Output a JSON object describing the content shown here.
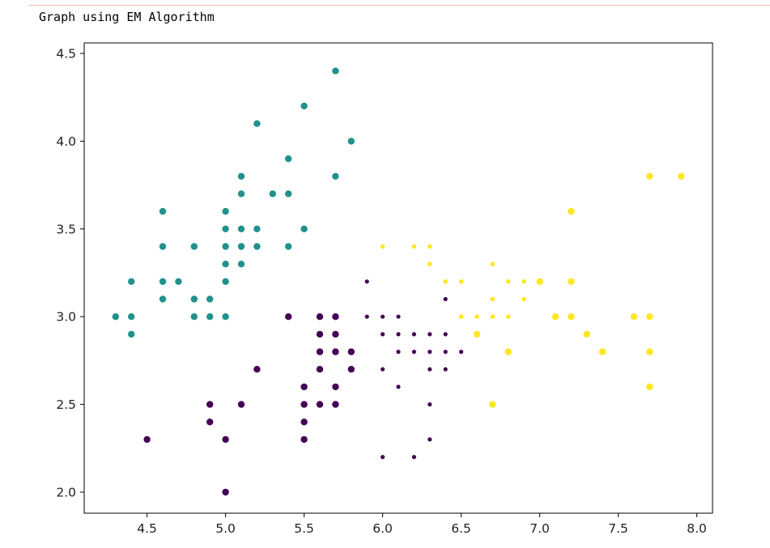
{
  "output": {
    "caption": "Graph using EM Algorithm"
  },
  "chart_data": {
    "type": "scatter",
    "title": "",
    "xlabel": "",
    "ylabel": "",
    "xlim": [
      4.1,
      8.1
    ],
    "ylim": [
      1.88,
      4.56
    ],
    "xticks": [
      4.5,
      5.0,
      5.5,
      6.0,
      6.5,
      7.0,
      7.5,
      8.0
    ],
    "yticks": [
      2.0,
      2.5,
      3.0,
      3.5,
      4.0,
      4.5
    ],
    "xtick_labels": [
      "4.5",
      "5.0",
      "5.5",
      "6.0",
      "6.5",
      "7.0",
      "7.5",
      "8.0"
    ],
    "ytick_labels": [
      "2.0",
      "2.5",
      "3.0",
      "3.5",
      "4.0",
      "4.5"
    ],
    "grid": false,
    "legend": "none",
    "series": [
      {
        "color": "#21918c",
        "points": [
          [
            4.3,
            3.0
          ],
          [
            4.4,
            3.0
          ],
          [
            4.4,
            2.9
          ],
          [
            4.4,
            3.2
          ],
          [
            4.6,
            3.6
          ],
          [
            4.6,
            3.4
          ],
          [
            4.6,
            3.2
          ],
          [
            4.6,
            3.1
          ],
          [
            4.7,
            3.2
          ],
          [
            4.8,
            3.4
          ],
          [
            4.8,
            3.1
          ],
          [
            4.8,
            3.0
          ],
          [
            4.9,
            3.1
          ],
          [
            4.9,
            3.0
          ],
          [
            5.0,
            3.6
          ],
          [
            5.0,
            3.5
          ],
          [
            5.0,
            3.4
          ],
          [
            5.0,
            3.3
          ],
          [
            5.0,
            3.2
          ],
          [
            5.0,
            3.0
          ],
          [
            5.1,
            3.8
          ],
          [
            5.1,
            3.7
          ],
          [
            5.1,
            3.5
          ],
          [
            5.1,
            3.4
          ],
          [
            5.1,
            3.3
          ],
          [
            5.2,
            4.1
          ],
          [
            5.2,
            3.5
          ],
          [
            5.2,
            3.4
          ],
          [
            5.3,
            3.7
          ],
          [
            5.4,
            3.9
          ],
          [
            5.4,
            3.7
          ],
          [
            5.4,
            3.4
          ],
          [
            5.5,
            4.2
          ],
          [
            5.5,
            3.5
          ],
          [
            5.7,
            4.4
          ],
          [
            5.7,
            3.8
          ],
          [
            5.8,
            4.0
          ]
        ]
      },
      {
        "color": "#440154",
        "points": [
          [
            4.5,
            2.3
          ],
          [
            4.9,
            2.5
          ],
          [
            4.9,
            2.4
          ],
          [
            5.0,
            2.3
          ],
          [
            5.0,
            2.0
          ],
          [
            5.1,
            2.5
          ],
          [
            5.2,
            2.7
          ],
          [
            5.4,
            3.0
          ],
          [
            5.5,
            2.6
          ],
          [
            5.5,
            2.5
          ],
          [
            5.5,
            2.4
          ],
          [
            5.5,
            2.3
          ],
          [
            5.6,
            3.0
          ],
          [
            5.6,
            2.9
          ],
          [
            5.6,
            2.8
          ],
          [
            5.6,
            2.7
          ],
          [
            5.6,
            2.5
          ],
          [
            5.7,
            3.0
          ],
          [
            5.7,
            2.9
          ],
          [
            5.7,
            2.8
          ],
          [
            5.7,
            2.6
          ],
          [
            5.7,
            2.5
          ],
          [
            5.8,
            2.8
          ],
          [
            5.8,
            2.7
          ],
          [
            5.9,
            3.2
          ],
          [
            5.9,
            3.0
          ],
          [
            6.0,
            3.0
          ],
          [
            6.0,
            2.9
          ],
          [
            6.0,
            2.7
          ],
          [
            6.0,
            2.2
          ],
          [
            6.1,
            3.0
          ],
          [
            6.1,
            2.9
          ],
          [
            6.1,
            2.8
          ],
          [
            6.1,
            2.6
          ],
          [
            6.2,
            2.9
          ],
          [
            6.2,
            2.8
          ],
          [
            6.2,
            2.2
          ],
          [
            6.3,
            2.9
          ],
          [
            6.3,
            2.8
          ],
          [
            6.3,
            2.7
          ],
          [
            6.3,
            2.5
          ],
          [
            6.3,
            2.3
          ],
          [
            6.4,
            3.1
          ],
          [
            6.4,
            2.9
          ],
          [
            6.4,
            2.8
          ],
          [
            6.4,
            2.7
          ],
          [
            6.5,
            2.8
          ]
        ]
      },
      {
        "color": "#fde725",
        "points": [
          [
            6.0,
            3.4
          ],
          [
            6.2,
            3.4
          ],
          [
            6.3,
            3.4
          ],
          [
            6.3,
            3.3
          ],
          [
            6.4,
            3.2
          ],
          [
            6.5,
            3.2
          ],
          [
            6.5,
            3.0
          ],
          [
            6.6,
            3.0
          ],
          [
            6.6,
            2.9
          ],
          [
            6.7,
            3.3
          ],
          [
            6.7,
            3.1
          ],
          [
            6.7,
            3.0
          ],
          [
            6.7,
            2.5
          ],
          [
            6.8,
            3.2
          ],
          [
            6.8,
            3.0
          ],
          [
            6.8,
            2.8
          ],
          [
            6.9,
            3.2
          ],
          [
            6.9,
            3.1
          ],
          [
            7.0,
            3.2
          ],
          [
            7.1,
            3.0
          ],
          [
            7.2,
            3.6
          ],
          [
            7.2,
            3.2
          ],
          [
            7.2,
            3.0
          ],
          [
            7.3,
            2.9
          ],
          [
            7.4,
            2.8
          ],
          [
            7.6,
            3.0
          ],
          [
            7.7,
            3.8
          ],
          [
            7.7,
            3.0
          ],
          [
            7.7,
            2.8
          ],
          [
            7.7,
            2.6
          ],
          [
            7.9,
            3.8
          ]
        ]
      }
    ]
  }
}
